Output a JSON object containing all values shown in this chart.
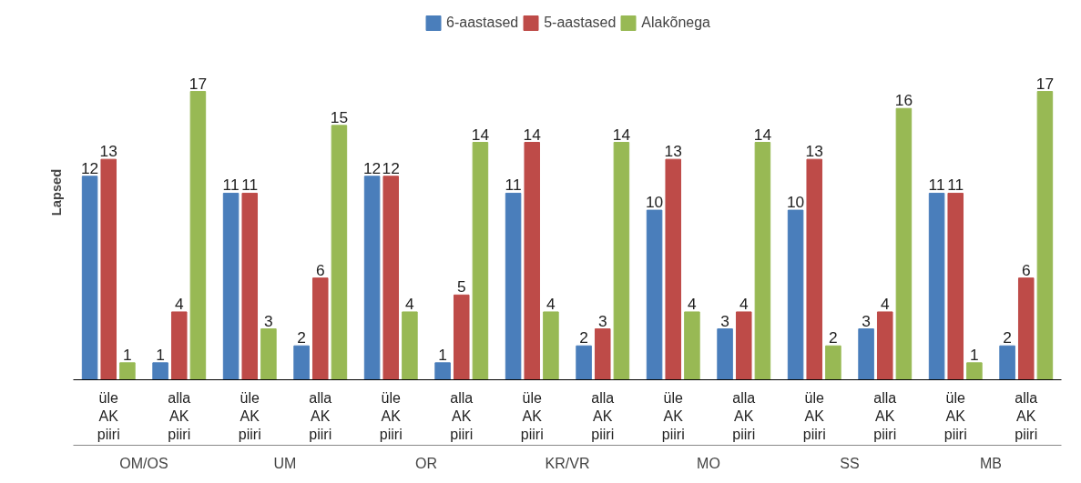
{
  "chart_data": {
    "type": "bar",
    "ylabel": "Lapsed",
    "categories": [
      "üle AK piiri",
      "alla AK piiri",
      "üle AK piiri",
      "alla AK piiri",
      "üle AK piiri",
      "alla AK piiri",
      "üle AK piiri",
      "alla AK piiri",
      "üle AK piiri",
      "alla AK piiri",
      "üle AK piiri",
      "alla AK piiri",
      "üle AK piiri",
      "alla AK piiri"
    ],
    "annotations": [
      "OM/OS",
      "UM",
      "OR",
      "KR/VR",
      "MO",
      "SS",
      "MB"
    ],
    "series": [
      {
        "name": "6-aastased",
        "color": "#4a7ebb",
        "values": [
          12,
          1,
          11,
          2,
          12,
          1,
          11,
          2,
          10,
          3,
          10,
          3,
          11,
          2
        ]
      },
      {
        "name": "5-aastased",
        "color": "#be4b48",
        "values": [
          13,
          4,
          11,
          6,
          12,
          5,
          14,
          3,
          13,
          4,
          13,
          4,
          11,
          6
        ]
      },
      {
        "name": "Alakõnega",
        "color": "#98b954",
        "values": [
          1,
          17,
          3,
          15,
          4,
          14,
          4,
          14,
          4,
          14,
          2,
          16,
          1,
          17
        ]
      }
    ],
    "data_labels": true,
    "legend": "top",
    "grid": false,
    "tick_labels": "x"
  }
}
